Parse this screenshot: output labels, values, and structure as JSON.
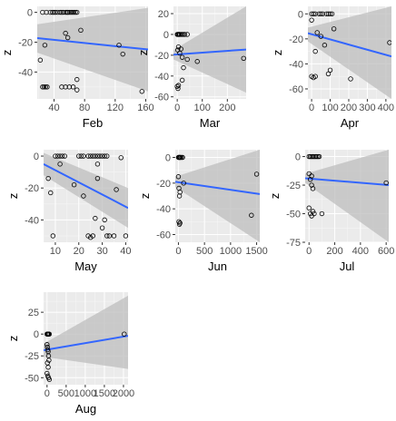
{
  "colors": {
    "panel": "#ebebeb",
    "grid_major": "#ffffff",
    "band": "#bdbdbd",
    "line": "#3366ff",
    "point": "#000000"
  },
  "chart_data": [
    {
      "type": "scatter",
      "xlabel": "Feb",
      "ylabel": "z",
      "grid": true,
      "smooth": "linear fit with confidence band",
      "xlim": [
        18,
        163
      ],
      "ylim": [
        -58,
        4
      ],
      "x_ticks": [
        40,
        80,
        120,
        160
      ],
      "x_tick_labels": [
        "40",
        "80",
        "120",
        "160"
      ],
      "y_ticks": [
        0,
        -20,
        -40
      ],
      "y_tick_labels": [
        "0",
        "-20",
        "-40"
      ],
      "x": [
        25,
        30,
        35,
        38,
        40,
        42,
        45,
        48,
        50,
        52,
        55,
        57,
        58,
        60,
        62,
        64,
        66,
        68,
        70,
        28,
        25,
        27,
        29,
        31,
        50,
        55,
        60,
        65,
        55,
        58,
        70,
        75,
        125,
        130,
        155,
        22,
        70
      ],
      "y": [
        0,
        0,
        0,
        0,
        0,
        0,
        0,
        0,
        0,
        0,
        0,
        0,
        0,
        0,
        0,
        0,
        0,
        0,
        0,
        -22,
        -50,
        -50,
        -50,
        -50,
        -50,
        -50,
        -50,
        -50,
        -14,
        -17,
        -45,
        -12,
        -22,
        -28,
        -53,
        -32,
        -52
      ],
      "fit": {
        "x": [
          18,
          163
        ],
        "y": [
          -17.3,
          -24.9
        ],
        "lower": [
          -27,
          -53
        ],
        "upper": [
          -8,
          3
        ]
      }
    },
    {
      "type": "scatter",
      "xlabel": "Mar",
      "ylabel": "z",
      "grid": true,
      "smooth": "linear fit with confidence band",
      "xlim": [
        -15,
        275
      ],
      "ylim": [
        -62,
        27
      ],
      "x_ticks": [
        0,
        100,
        200
      ],
      "x_tick_labels": [
        "0",
        "100",
        "200"
      ],
      "y_ticks": [
        20,
        0,
        -20,
        -40,
        -60
      ],
      "y_tick_labels": [
        "20",
        "0",
        "-20",
        "-40",
        "-60"
      ],
      "x": [
        0,
        3,
        5,
        8,
        10,
        15,
        20,
        25,
        30,
        40,
        2,
        5,
        10,
        20,
        25,
        40,
        80,
        265,
        0,
        3,
        5,
        20,
        15
      ],
      "y": [
        0,
        0,
        0,
        0,
        0,
        0,
        0,
        0,
        0,
        0,
        -15,
        -12,
        -18,
        -22,
        -32,
        -24,
        -26,
        -23,
        -50,
        -52,
        -49,
        -44,
        -14
      ],
      "fit": {
        "x": [
          -15,
          275
        ],
        "y": [
          -19.5,
          -14.5
        ],
        "lower": [
          -24,
          -56
        ],
        "upper": [
          -15,
          27
        ]
      }
    },
    {
      "type": "scatter",
      "xlabel": "Apr",
      "ylabel": "z",
      "grid": true,
      "smooth": "linear fit with confidence band",
      "xlim": [
        -20,
        430
      ],
      "ylim": [
        -68,
        6
      ],
      "x_ticks": [
        0,
        100,
        200,
        300,
        400
      ],
      "x_tick_labels": [
        "0",
        "100",
        "200",
        "300",
        "400"
      ],
      "y_ticks": [
        0,
        -20,
        -40,
        -60
      ],
      "y_tick_labels": [
        "0",
        "-20",
        "-40",
        "-60"
      ],
      "x": [
        0,
        10,
        20,
        40,
        50,
        60,
        80,
        90,
        100,
        110,
        0,
        10,
        20,
        30,
        50,
        70,
        90,
        100,
        120,
        210,
        420,
        0,
        20
      ],
      "y": [
        0,
        0,
        0,
        0,
        0,
        0,
        0,
        0,
        0,
        0,
        -50,
        -51,
        -50,
        -15,
        -18,
        -25,
        -48,
        -45,
        -12,
        -52,
        -23,
        -5,
        -30
      ],
      "fit": {
        "x": [
          -20,
          430
        ],
        "y": [
          -15.5,
          -34
        ],
        "lower": [
          -22,
          -68
        ],
        "upper": [
          -11,
          6
        ]
      }
    },
    {
      "type": "scatter",
      "xlabel": "May",
      "ylabel": "z",
      "grid": true,
      "smooth": "linear fit with confidence band",
      "xlim": [
        5,
        41
      ],
      "ylim": [
        -54,
        4
      ],
      "x_ticks": [
        10,
        20,
        30,
        40
      ],
      "x_tick_labels": [
        "10",
        "20",
        "30",
        "40"
      ],
      "y_ticks": [
        0,
        -20,
        -40
      ],
      "y_tick_labels": [
        "0",
        "-20",
        "-40"
      ],
      "x": [
        10,
        11,
        12,
        13,
        14,
        20,
        21,
        22,
        24,
        25,
        26,
        27,
        28,
        29,
        30,
        31,
        32,
        7,
        8,
        9,
        12,
        18,
        22,
        24,
        25,
        26,
        27,
        28,
        30,
        31,
        32,
        33,
        35,
        36,
        38,
        40,
        28
      ],
      "y": [
        0,
        0,
        0,
        0,
        0,
        0,
        0,
        0,
        0,
        0,
        0,
        0,
        0,
        0,
        0,
        0,
        0,
        -14,
        -23,
        -50,
        -5,
        -18,
        -25,
        -50,
        -51,
        -50,
        -39,
        -5,
        -45,
        -40,
        -50,
        -50,
        -50,
        -21,
        -1,
        -50,
        -14
      ],
      "fit": {
        "x": [
          5,
          41
        ],
        "y": [
          -5,
          -32.5
        ],
        "lower": [
          -12,
          -45
        ],
        "upper": [
          2,
          -20
        ]
      }
    },
    {
      "type": "scatter",
      "xlabel": "Jun",
      "ylabel": "z",
      "grid": true,
      "smooth": "linear fit with confidence band",
      "xlim": [
        -60,
        1560
      ],
      "ylim": [
        -66,
        6
      ],
      "x_ticks": [
        0,
        500,
        1000,
        1500
      ],
      "x_tick_labels": [
        "0",
        "500",
        "1000",
        "1500"
      ],
      "y_ticks": [
        0,
        -20,
        -40,
        -60
      ],
      "y_tick_labels": [
        "0",
        "-20",
        "-40",
        "-60"
      ],
      "x": [
        0,
        10,
        20,
        30,
        40,
        60,
        80,
        100,
        0,
        10,
        20,
        30,
        10,
        20,
        30,
        1400,
        1500
      ],
      "y": [
        0,
        0,
        0,
        0,
        0,
        0,
        0,
        -20,
        -15,
        -24,
        -30,
        -27,
        -50,
        -52,
        -51,
        -45,
        -13
      ],
      "fit": {
        "x": [
          -60,
          1560
        ],
        "y": [
          -19,
          -28.5
        ],
        "lower": [
          -23,
          -66
        ],
        "upper": [
          -15,
          6
        ]
      }
    },
    {
      "type": "scatter",
      "xlabel": "Jul",
      "ylabel": "z",
      "grid": true,
      "smooth": "linear fit with confidence band",
      "xlim": [
        -30,
        620
      ],
      "ylim": [
        -75,
        6
      ],
      "x_ticks": [
        0,
        200,
        400,
        600
      ],
      "x_tick_labels": [
        "0",
        "200",
        "400",
        "600"
      ],
      "y_ticks": [
        0,
        -25,
        -50,
        -75
      ],
      "y_tick_labels": [
        "0",
        "-25",
        "-50",
        "-75"
      ],
      "x": [
        0,
        10,
        20,
        30,
        40,
        50,
        60,
        70,
        80,
        0,
        10,
        20,
        30,
        0,
        10,
        20,
        30,
        40,
        100,
        20,
        600
      ],
      "y": [
        0,
        0,
        0,
        0,
        0,
        0,
        0,
        0,
        0,
        -15,
        -20,
        -25,
        -28,
        -45,
        -50,
        -52,
        -48,
        -50,
        -50,
        -17,
        -23
      ],
      "fit": {
        "x": [
          -30,
          620
        ],
        "y": [
          -19,
          -25
        ],
        "lower": [
          -23,
          -75
        ],
        "upper": [
          -15,
          6
        ]
      }
    },
    {
      "type": "scatter",
      "xlabel": "Aug",
      "ylabel": "z",
      "grid": true,
      "smooth": "linear fit with confidence band",
      "xlim": [
        -90,
        2120
      ],
      "ylim": [
        -58,
        48
      ],
      "x_ticks": [
        0,
        500,
        1000,
        1500,
        2000
      ],
      "x_tick_labels": [
        "0",
        "500",
        "1000",
        "1500",
        "2000"
      ],
      "y_ticks": [
        25,
        0,
        -25,
        -50
      ],
      "y_tick_labels": [
        "25",
        "0",
        "-25",
        "-50"
      ],
      "x": [
        0,
        10,
        20,
        30,
        40,
        60,
        0,
        10,
        20,
        30,
        40,
        50,
        0,
        20,
        40,
        60,
        10,
        30,
        2020
      ],
      "y": [
        0,
        0,
        0,
        0,
        0,
        0,
        -12,
        -15,
        -18,
        -20,
        -25,
        -30,
        -45,
        -48,
        -50,
        -52,
        -33,
        -38,
        0
      ],
      "fit": {
        "x": [
          -90,
          2120
        ],
        "y": [
          -18.5,
          -2
        ],
        "lower": [
          -26,
          -40
        ],
        "upper": [
          -11,
          44
        ]
      }
    }
  ]
}
